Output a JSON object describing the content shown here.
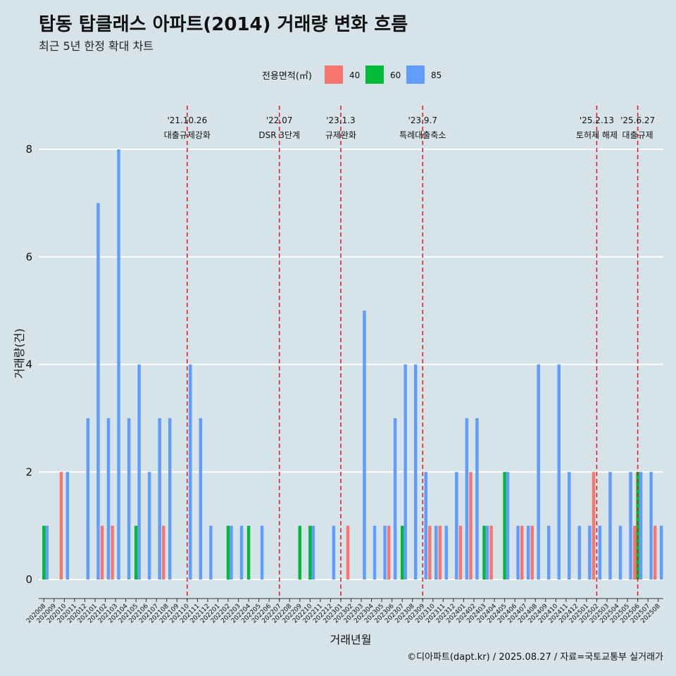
{
  "header": {
    "title": "탑동 탑클래스 아파트(2014) 거래량 변화 흐름",
    "subtitle": "최근 5년 한정 확대 차트"
  },
  "caption": "©디아파트(dapt.kr) / 2025.08.27 / 자료=국토교통부 실거래가",
  "colors": {
    "40": "#f8766d",
    "60": "#00ba38",
    "85": "#619cff",
    "event_line": "#e31a1c",
    "background": "#d6e4ea",
    "grid": "#ffffff"
  },
  "chart_data": {
    "type": "bar",
    "xlabel": "거래년월",
    "ylabel": "거래량(건)",
    "ylim": [
      0,
      8
    ],
    "yticks": [
      0,
      2,
      4,
      6,
      8
    ],
    "legend": {
      "title": "전용면적(㎡)",
      "placement": "top",
      "entries": [
        "40",
        "60",
        "85"
      ]
    },
    "grid": true,
    "categories": [
      "202008",
      "202009",
      "202010",
      "202011",
      "202012",
      "202101",
      "202102",
      "202103",
      "202104",
      "202105",
      "202106",
      "202107",
      "202108",
      "202109",
      "202110",
      "202111",
      "202112",
      "202201",
      "202202",
      "202203",
      "202204",
      "202205",
      "202206",
      "202207",
      "202208",
      "202209",
      "202210",
      "202211",
      "202212",
      "202301",
      "202302",
      "202303",
      "202304",
      "202305",
      "202306",
      "202307",
      "202308",
      "202309",
      "202310",
      "202311",
      "202312",
      "202401",
      "202402",
      "202403",
      "202404",
      "202405",
      "202406",
      "202407",
      "202408",
      "202409",
      "202410",
      "202411",
      "202412",
      "202501",
      "202502",
      "202503",
      "202504",
      "202505",
      "202506",
      "202507",
      "202508"
    ],
    "series": [
      {
        "name": "40",
        "values": [
          0,
          0,
          2,
          0,
          0,
          0,
          1,
          1,
          0,
          0,
          0,
          0,
          1,
          0,
          0,
          0,
          0,
          0,
          0,
          0,
          0,
          0,
          0,
          0,
          0,
          0,
          0,
          0,
          0,
          0,
          1,
          0,
          0,
          0,
          1,
          0,
          0,
          0,
          1,
          1,
          0,
          1,
          2,
          0,
          1,
          0,
          0,
          1,
          1,
          0,
          0,
          0,
          0,
          0,
          2,
          0,
          0,
          0,
          1,
          0,
          1
        ]
      },
      {
        "name": "60",
        "values": [
          1,
          0,
          0,
          0,
          0,
          0,
          0,
          0,
          0,
          1,
          0,
          0,
          0,
          0,
          0,
          0,
          0,
          0,
          1,
          0,
          1,
          0,
          0,
          0,
          0,
          1,
          1,
          0,
          0,
          0,
          0,
          0,
          0,
          0,
          0,
          1,
          0,
          0,
          0,
          0,
          0,
          0,
          0,
          1,
          0,
          2,
          0,
          0,
          0,
          0,
          0,
          0,
          0,
          0,
          0,
          0,
          0,
          0,
          2,
          0,
          0
        ]
      },
      {
        "name": "85",
        "values": [
          1,
          0,
          2,
          0,
          3,
          7,
          3,
          8,
          3,
          4,
          2,
          3,
          3,
          0,
          4,
          3,
          1,
          0,
          1,
          1,
          0,
          1,
          0,
          0,
          0,
          0,
          1,
          0,
          1,
          0,
          0,
          5,
          1,
          1,
          3,
          4,
          4,
          2,
          1,
          1,
          2,
          3,
          3,
          1,
          0,
          2,
          1,
          1,
          4,
          1,
          4,
          2,
          1,
          1,
          1,
          2,
          1,
          2,
          2,
          2,
          1
        ]
      }
    ],
    "events": [
      {
        "date": "'21.10.26",
        "label": "대출규제강화",
        "category": "202110"
      },
      {
        "date": "'22.07",
        "label": "DSR 3단계",
        "category": "202207"
      },
      {
        "date": "'23.1.3",
        "label": "규제완화",
        "category": "202301"
      },
      {
        "date": "'23.9.7",
        "label": "특례대출축소",
        "category": "202309"
      },
      {
        "date": "'25.2.13",
        "label": "토허제 해제",
        "category": "202502"
      },
      {
        "date": "'25.6.27",
        "label": "대출규제",
        "category": "202506"
      }
    ]
  }
}
